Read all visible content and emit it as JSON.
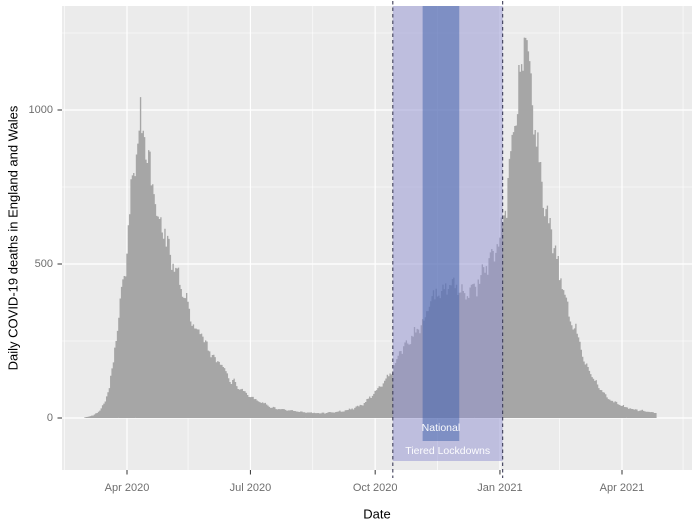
{
  "figure": {
    "background": "#ffffff",
    "panel_background": "#ebebeb",
    "gridline_color": "#ffffff"
  },
  "y_axis": {
    "title": "Daily COVID-19 deaths in England and Wales",
    "ticks": [
      {
        "value": 0,
        "label": "0"
      },
      {
        "value": 500,
        "label": "500"
      },
      {
        "value": 1000,
        "label": "1000"
      }
    ],
    "minor_tick_values": [
      250,
      750,
      1250
    ]
  },
  "x_axis": {
    "title": "Date",
    "ticks": [
      {
        "date": "2020-04-01",
        "label": "Apr 2020"
      },
      {
        "date": "2020-07-01",
        "label": "Jul 2020"
      },
      {
        "date": "2020-10-01",
        "label": "Oct 2020"
      },
      {
        "date": "2021-01-01",
        "label": "Jan 2021"
      },
      {
        "date": "2021-04-01",
        "label": "Apr 2021"
      }
    ],
    "minor_tick_dates": [
      "2020-02-15",
      "2020-05-16",
      "2020-08-16",
      "2020-11-16",
      "2021-02-14",
      "2021-05-16"
    ]
  },
  "annotations": {
    "tiered_lockdowns": {
      "label": "Tiered Lockdowns",
      "start": "2020-10-14",
      "end": "2021-01-03",
      "fill": "rgba(145,145,210,0.50)"
    },
    "national_lockdown": {
      "label": "National",
      "start": "2020-11-05",
      "end": "2020-12-02",
      "fill": "rgba(62,95,170,0.50)"
    },
    "dashed_line_color": "#3d3d58",
    "label_color": "#ffffff"
  },
  "chart_data": {
    "type": "bar",
    "title": "",
    "xlabel": "Date",
    "ylabel": "Daily COVID-19 deaths in England and Wales",
    "bar_color": "#a6a6a6",
    "x_range": [
      "2020-02-13",
      "2021-05-22"
    ],
    "ylim": [
      -169,
      1338
    ],
    "data_start": "2020-03-01",
    "data_end": "2021-04-26",
    "points": [
      [
        "2020-03-01",
        2
      ],
      [
        "2020-03-07",
        8
      ],
      [
        "2020-03-12",
        25
      ],
      [
        "2020-03-16",
        55
      ],
      [
        "2020-03-19",
        105
      ],
      [
        "2020-03-22",
        185
      ],
      [
        "2020-03-26",
        340
      ],
      [
        "2020-03-30",
        450
      ],
      [
        "2020-04-03",
        670
      ],
      [
        "2020-04-07",
        850
      ],
      [
        "2020-04-10",
        920
      ],
      [
        "2020-04-11",
        1020
      ],
      [
        "2020-04-12",
        930
      ],
      [
        "2020-04-14",
        895
      ],
      [
        "2020-04-18",
        805
      ],
      [
        "2020-04-21",
        720
      ],
      [
        "2020-04-25",
        635
      ],
      [
        "2020-04-29",
        610
      ],
      [
        "2020-05-03",
        515
      ],
      [
        "2020-05-07",
        500
      ],
      [
        "2020-05-11",
        425
      ],
      [
        "2020-05-14",
        395
      ],
      [
        "2020-05-18",
        330
      ],
      [
        "2020-05-22",
        290
      ],
      [
        "2020-05-26",
        275
      ],
      [
        "2020-05-30",
        230
      ],
      [
        "2020-06-03",
        200
      ],
      [
        "2020-06-07",
        180
      ],
      [
        "2020-06-11",
        165
      ],
      [
        "2020-06-14",
        135
      ],
      [
        "2020-06-18",
        120
      ],
      [
        "2020-06-25",
        90
      ],
      [
        "2020-07-02",
        68
      ],
      [
        "2020-07-09",
        52
      ],
      [
        "2020-07-16",
        36
      ],
      [
        "2020-07-23",
        28
      ],
      [
        "2020-07-30",
        24
      ],
      [
        "2020-08-06",
        20
      ],
      [
        "2020-08-13",
        17
      ],
      [
        "2020-08-20",
        16
      ],
      [
        "2020-08-27",
        17
      ],
      [
        "2020-09-03",
        20
      ],
      [
        "2020-09-10",
        25
      ],
      [
        "2020-09-16",
        33
      ],
      [
        "2020-09-22",
        45
      ],
      [
        "2020-09-27",
        65
      ],
      [
        "2020-10-02",
        90
      ],
      [
        "2020-10-08",
        120
      ],
      [
        "2020-10-14",
        155
      ],
      [
        "2020-10-20",
        220
      ],
      [
        "2020-10-26",
        255
      ],
      [
        "2020-11-01",
        285
      ],
      [
        "2020-11-05",
        310
      ],
      [
        "2020-11-10",
        360
      ],
      [
        "2020-11-15",
        395
      ],
      [
        "2020-11-20",
        415
      ],
      [
        "2020-11-25",
        435
      ],
      [
        "2020-11-29",
        425
      ],
      [
        "2020-12-02",
        415
      ],
      [
        "2020-12-06",
        390
      ],
      [
        "2020-12-10",
        405
      ],
      [
        "2020-12-14",
        425
      ],
      [
        "2020-12-18",
        470
      ],
      [
        "2020-12-23",
        505
      ],
      [
        "2020-12-27",
        530
      ],
      [
        "2020-12-31",
        560
      ],
      [
        "2021-01-03",
        610
      ],
      [
        "2021-01-06",
        700
      ],
      [
        "2021-01-09",
        820
      ],
      [
        "2021-01-12",
        940
      ],
      [
        "2021-01-15",
        1060
      ],
      [
        "2021-01-18",
        1190
      ],
      [
        "2021-01-20",
        1265
      ],
      [
        "2021-01-22",
        1160
      ],
      [
        "2021-01-24",
        1080
      ],
      [
        "2021-01-27",
        980
      ],
      [
        "2021-01-30",
        840
      ],
      [
        "2021-02-03",
        690
      ],
      [
        "2021-02-07",
        610
      ],
      [
        "2021-02-10",
        560
      ],
      [
        "2021-02-14",
        460
      ],
      [
        "2021-02-17",
        420
      ],
      [
        "2021-02-21",
        330
      ],
      [
        "2021-02-25",
        295
      ],
      [
        "2021-03-01",
        245
      ],
      [
        "2021-03-05",
        180
      ],
      [
        "2021-03-09",
        145
      ],
      [
        "2021-03-13",
        115
      ],
      [
        "2021-03-17",
        90
      ],
      [
        "2021-03-21",
        70
      ],
      [
        "2021-03-25",
        55
      ],
      [
        "2021-03-29",
        45
      ],
      [
        "2021-04-02",
        38
      ],
      [
        "2021-04-06",
        32
      ],
      [
        "2021-04-10",
        28
      ],
      [
        "2021-04-14",
        25
      ],
      [
        "2021-04-18",
        22
      ],
      [
        "2021-04-22",
        19
      ],
      [
        "2021-04-26",
        16
      ]
    ]
  }
}
